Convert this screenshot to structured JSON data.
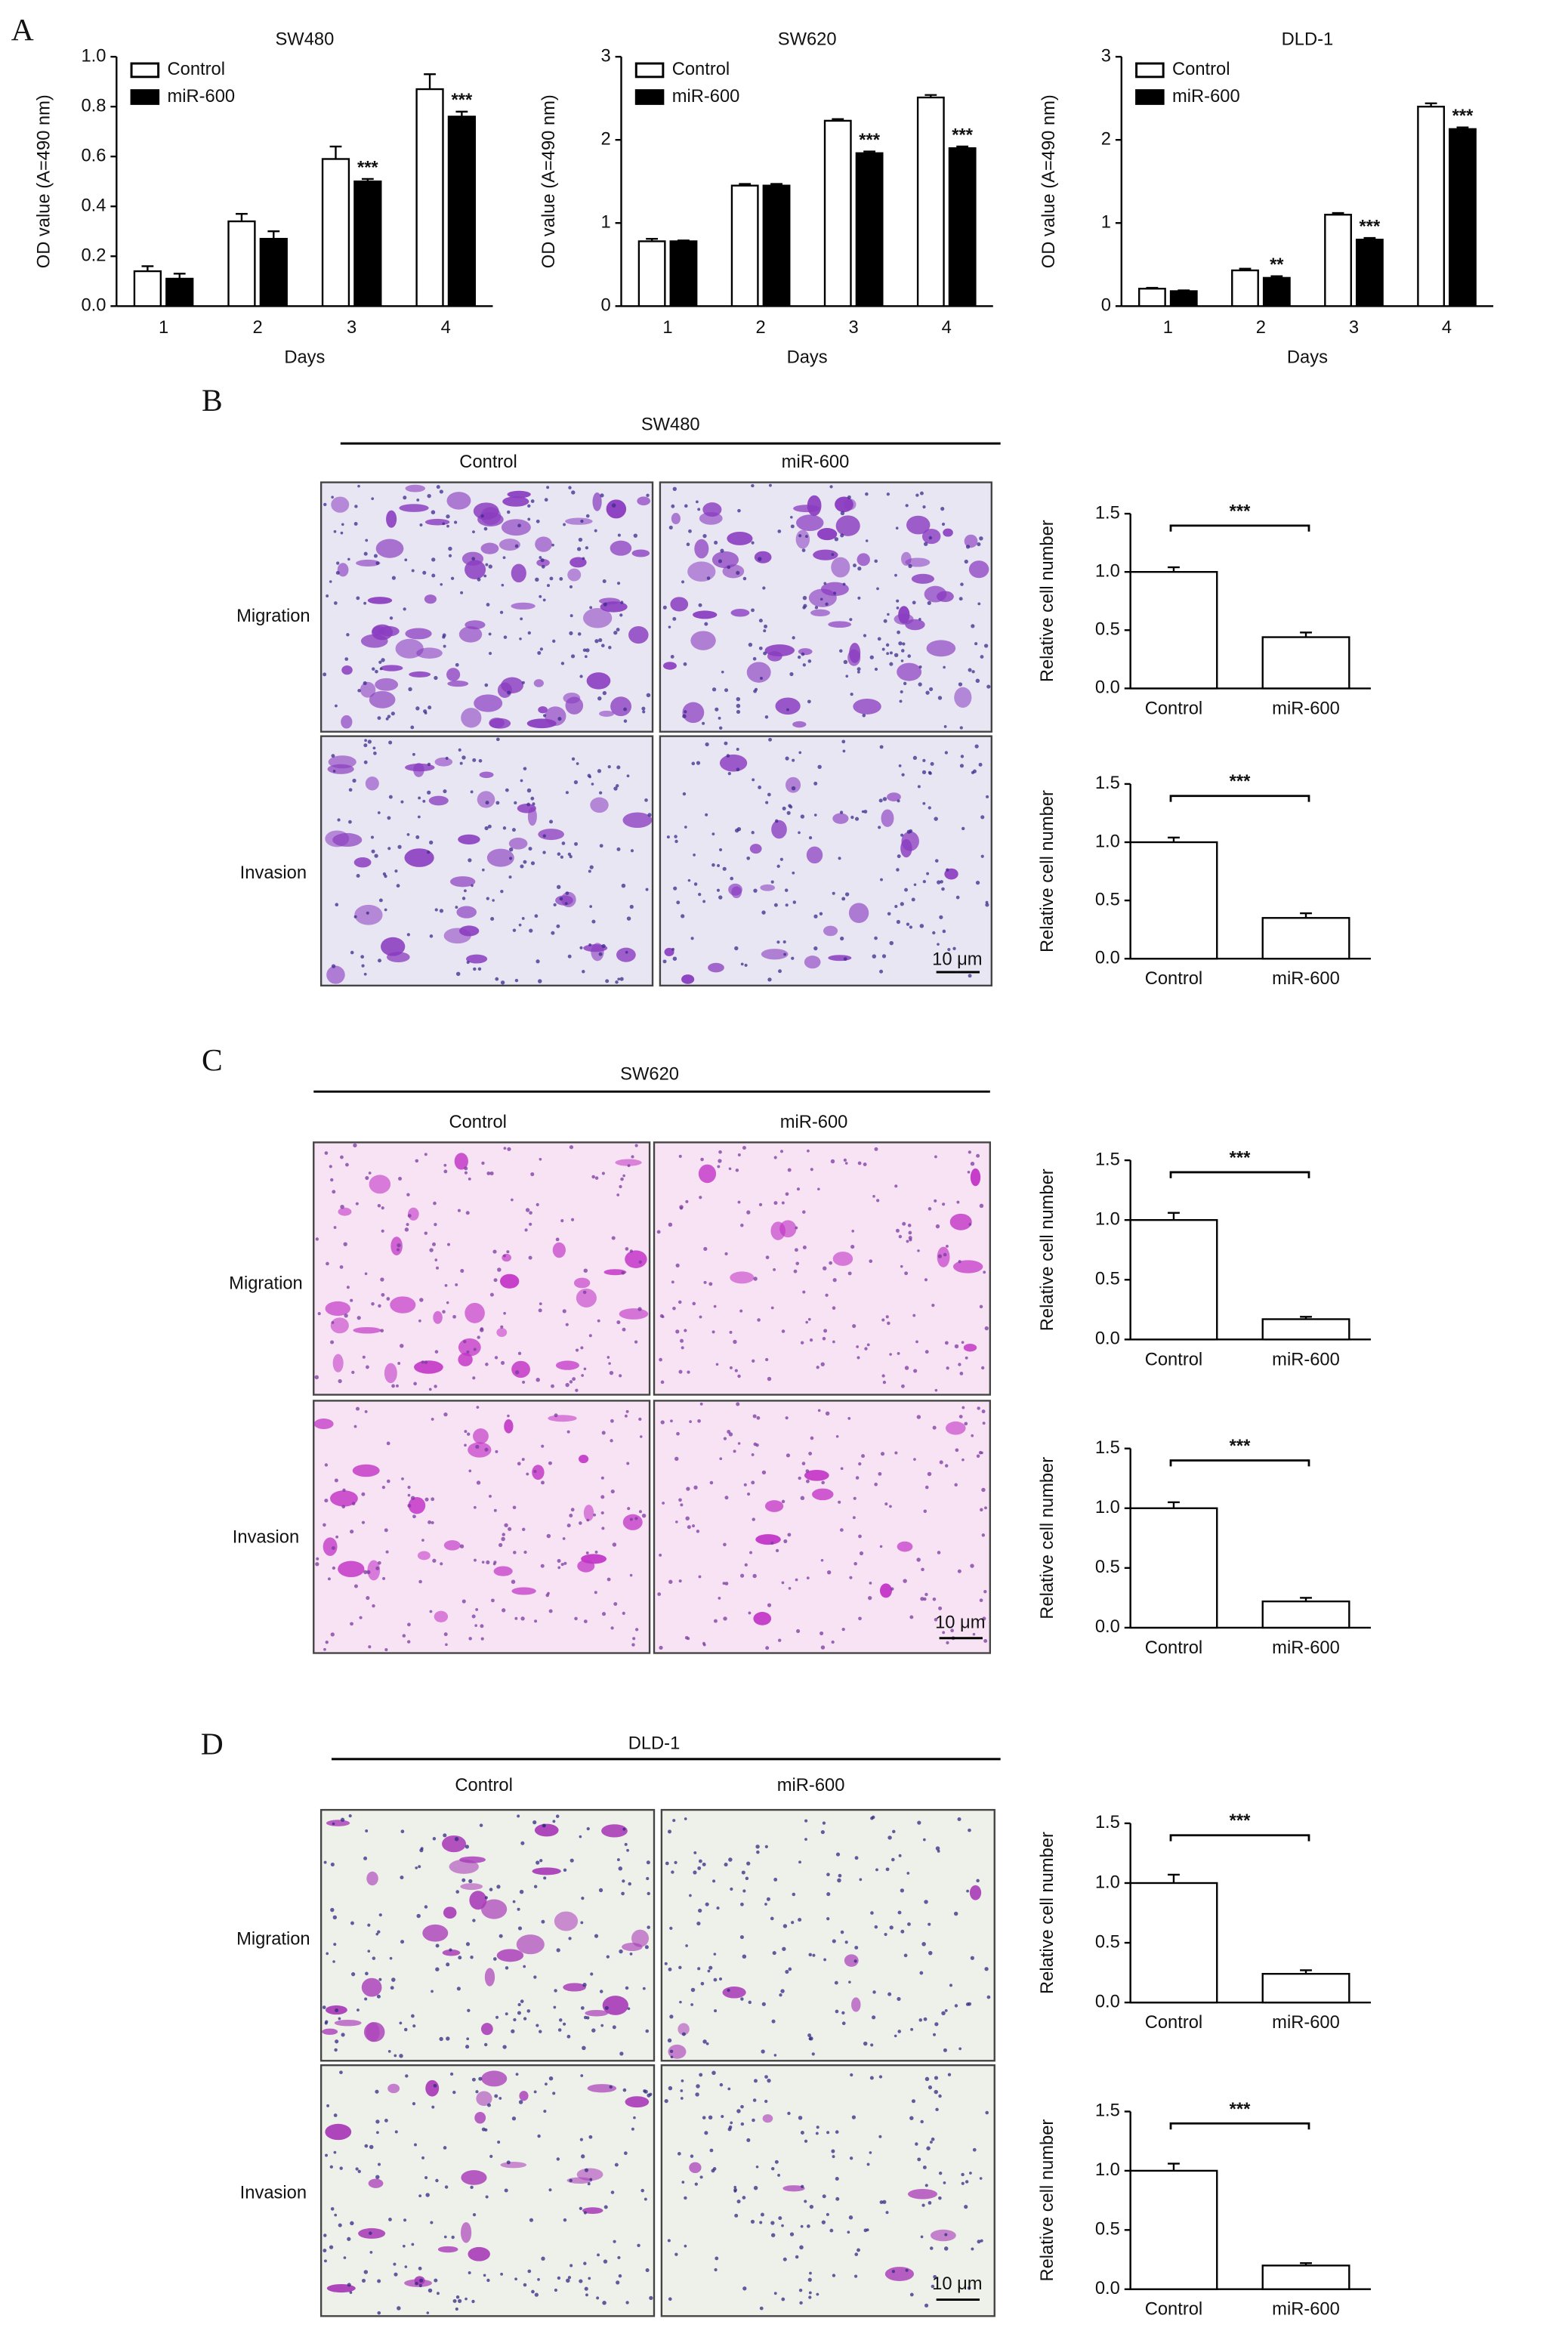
{
  "chart_data": [
    {
      "type": "bar",
      "title": "SW480",
      "x_label": "Days",
      "y_label": "OD value (A=490 nm)",
      "categories": [
        "1",
        "2",
        "3",
        "4"
      ],
      "series": [
        {
          "name": "Control",
          "color": "#ffffff",
          "values": [
            0.14,
            0.34,
            0.59,
            0.87
          ],
          "errors": [
            0.02,
            0.03,
            0.05,
            0.06
          ]
        },
        {
          "name": "miR-600",
          "color": "#000000",
          "values": [
            0.11,
            0.27,
            0.5,
            0.76
          ],
          "errors": [
            0.02,
            0.03,
            0.01,
            0.02
          ],
          "significance": [
            null,
            null,
            "***",
            "***"
          ]
        }
      ],
      "ylim": [
        0,
        1
      ],
      "yticks": [
        {
          "value": 0,
          "label": "0.0"
        },
        0.2,
        0.4,
        0.6,
        0.8,
        {
          "value": 1,
          "label": "1.0"
        }
      ],
      "legend": "upper left"
    },
    {
      "type": "bar",
      "title": "SW620",
      "x_label": "Days",
      "y_label": "OD value (A=490 nm)",
      "categories": [
        "1",
        "2",
        "3",
        "4"
      ],
      "series": [
        {
          "name": "Control",
          "color": "#ffffff",
          "values": [
            0.78,
            1.45,
            2.23,
            2.51
          ],
          "errors": [
            0.03,
            0.02,
            0.02,
            0.03
          ]
        },
        {
          "name": "miR-600",
          "color": "#000000",
          "values": [
            0.78,
            1.45,
            1.84,
            1.9
          ],
          "errors": [
            0.01,
            0.02,
            0.02,
            0.02
          ],
          "significance": [
            null,
            null,
            "***",
            "***"
          ]
        }
      ],
      "ylim": [
        0,
        3
      ],
      "yticks": [
        0,
        1,
        2,
        3
      ],
      "legend": "upper left"
    },
    {
      "type": "bar",
      "title": "DLD-1",
      "x_label": "Days",
      "y_label": "OD value (A=490 nm)",
      "categories": [
        "1",
        "2",
        "3",
        "4"
      ],
      "series": [
        {
          "name": "Control",
          "color": "#ffffff",
          "values": [
            0.21,
            0.43,
            1.1,
            2.4
          ],
          "errors": [
            0.01,
            0.02,
            0.02,
            0.04
          ]
        },
        {
          "name": "miR-600",
          "color": "#000000",
          "values": [
            0.18,
            0.34,
            0.8,
            2.13
          ],
          "errors": [
            0.01,
            0.02,
            0.02,
            0.02
          ],
          "significance": [
            null,
            "**",
            "***",
            "***"
          ]
        }
      ],
      "ylim": [
        0,
        3
      ],
      "yticks": [
        0,
        1,
        2,
        3
      ],
      "legend": "upper left"
    },
    {
      "type": "bar",
      "y_label": "Relative cell number",
      "categories": [
        "Control",
        "miR-600"
      ],
      "values": [
        1.0,
        0.44
      ],
      "errors": [
        0.04,
        0.04
      ],
      "color": "#ffffff",
      "significance": "***",
      "ylim": [
        0,
        1.5
      ],
      "yticks": [
        {
          "value": 0,
          "label": "0.0"
        },
        0.5,
        {
          "value": 1,
          "label": "1.0"
        },
        1.5
      ]
    },
    {
      "type": "bar",
      "y_label": "Relative cell number",
      "categories": [
        "Control",
        "miR-600"
      ],
      "values": [
        1.0,
        0.35
      ],
      "errors": [
        0.04,
        0.04
      ],
      "color": "#ffffff",
      "significance": "***",
      "ylim": [
        0,
        1.5
      ],
      "yticks": [
        {
          "value": 0,
          "label": "0.0"
        },
        0.5,
        {
          "value": 1,
          "label": "1.0"
        },
        1.5
      ]
    },
    {
      "type": "bar",
      "y_label": "Relative cell number",
      "categories": [
        "Control",
        "miR-600"
      ],
      "values": [
        1.0,
        0.17
      ],
      "errors": [
        0.06,
        0.02
      ],
      "color": "#ffffff",
      "significance": "***",
      "ylim": [
        0,
        1.5
      ],
      "yticks": [
        {
          "value": 0,
          "label": "0.0"
        },
        0.5,
        {
          "value": 1,
          "label": "1.0"
        },
        1.5
      ]
    },
    {
      "type": "bar",
      "y_label": "Relative cell number",
      "categories": [
        "Control",
        "miR-600"
      ],
      "values": [
        1.0,
        0.22
      ],
      "errors": [
        0.05,
        0.03
      ],
      "color": "#ffffff",
      "significance": "***",
      "ylim": [
        0,
        1.5
      ],
      "yticks": [
        {
          "value": 0,
          "label": "0.0"
        },
        0.5,
        {
          "value": 1,
          "label": "1.0"
        },
        1.5
      ]
    },
    {
      "type": "bar",
      "y_label": "Relative cell number",
      "categories": [
        "Control",
        "miR-600"
      ],
      "values": [
        1.0,
        0.24
      ],
      "errors": [
        0.07,
        0.03
      ],
      "color": "#ffffff",
      "significance": "***",
      "ylim": [
        0,
        1.5
      ],
      "yticks": [
        {
          "value": 0,
          "label": "0.0"
        },
        0.5,
        {
          "value": 1,
          "label": "1.0"
        },
        1.5
      ]
    },
    {
      "type": "bar",
      "y_label": "Relative cell number",
      "categories": [
        "Control",
        "miR-600"
      ],
      "values": [
        1.0,
        0.2
      ],
      "errors": [
        0.06,
        0.02
      ],
      "color": "#ffffff",
      "significance": "***",
      "ylim": [
        0,
        1.5
      ],
      "yticks": [
        {
          "value": 0,
          "label": "0.0"
        },
        0.5,
        {
          "value": 1,
          "label": "1.0"
        },
        1.5
      ]
    }
  ],
  "panels": [
    {
      "letter": "A"
    },
    {
      "letter": "B",
      "cell_line": "SW480",
      "columns": [
        "Control",
        "miR-600"
      ],
      "rows": [
        "Migration",
        "Invasion"
      ],
      "scale_bar": "10 μm"
    },
    {
      "letter": "C",
      "cell_line": "SW620",
      "columns": [
        "Control",
        "miR-600"
      ],
      "rows": [
        "Migration",
        "Invasion"
      ],
      "scale_bar": "10 μm"
    },
    {
      "letter": "D",
      "cell_line": "DLD-1",
      "columns": [
        "Control",
        "miR-600"
      ],
      "rows": [
        "Migration",
        "Invasion"
      ],
      "scale_bar": "10 μm"
    }
  ]
}
